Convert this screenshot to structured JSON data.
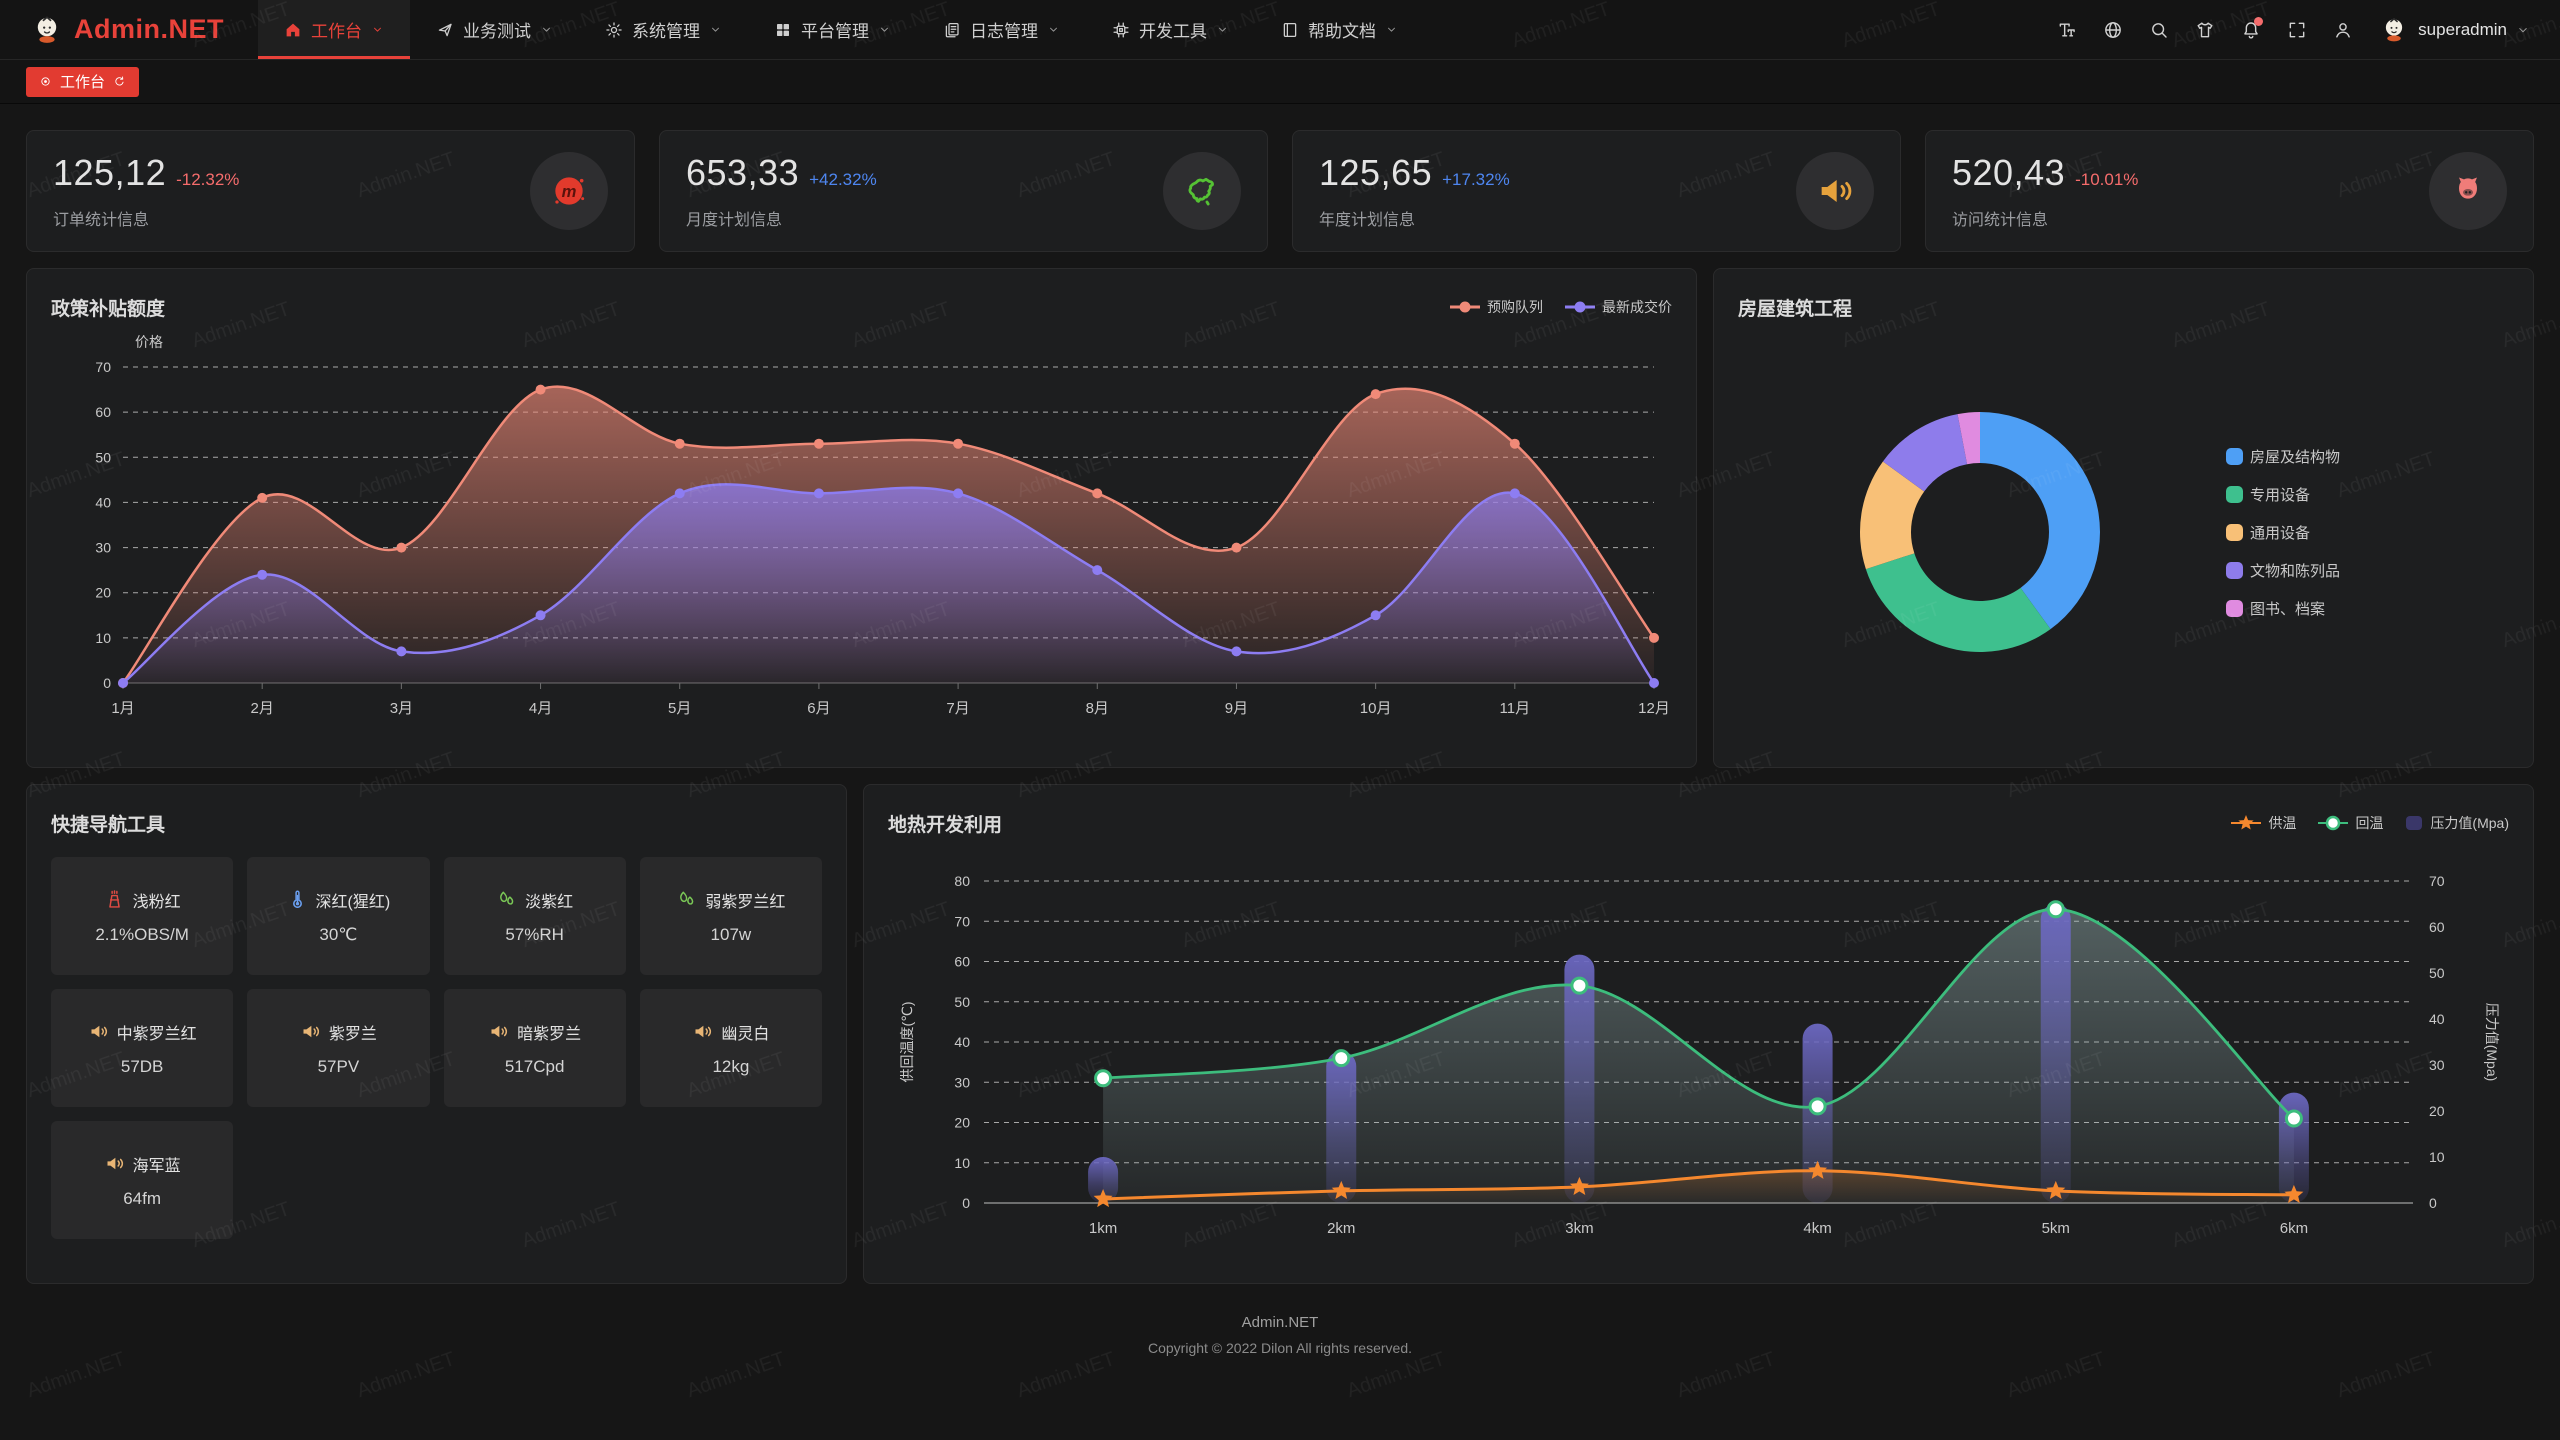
{
  "app": {
    "name": "Admin.NET",
    "watermark": "Admin.NET"
  },
  "colors": {
    "accent": "#e23b31",
    "up": "#4e86f0",
    "down": "#f56c6c",
    "badge": "#f56c6c"
  },
  "navbar": {
    "menus": [
      {
        "key": "workbench",
        "label": "工作台",
        "icon": "home-icon",
        "active": true
      },
      {
        "key": "business-test",
        "label": "业务测试",
        "icon": "send-icon",
        "active": false
      },
      {
        "key": "system-mgmt",
        "label": "系统管理",
        "icon": "gear-icon",
        "active": false
      },
      {
        "key": "platform-mgmt",
        "label": "平台管理",
        "icon": "grid-icon",
        "active": false
      },
      {
        "key": "log-mgmt",
        "label": "日志管理",
        "icon": "log-icon",
        "active": false
      },
      {
        "key": "dev-tools",
        "label": "开发工具",
        "icon": "cpu-icon",
        "active": false
      },
      {
        "key": "help-docs",
        "label": "帮助文档",
        "icon": "book-icon",
        "active": false
      }
    ],
    "actions": [
      {
        "name": "text-size-icon"
      },
      {
        "name": "language-icon"
      },
      {
        "name": "search-icon"
      },
      {
        "name": "theme-icon"
      },
      {
        "name": "notification-bell-icon",
        "badge": true
      },
      {
        "name": "fullscreen-icon"
      },
      {
        "name": "user-icon"
      }
    ],
    "user": "superadmin"
  },
  "tabbar": {
    "tabs": [
      {
        "label": "工作台",
        "active": true
      }
    ]
  },
  "stat_cards": [
    {
      "value": "125,12",
      "change": "-12.32%",
      "trend": "down",
      "label": "订单统计信息",
      "icon": "meetup-icon",
      "icon_color": "#e23a2c"
    },
    {
      "value": "653,33",
      "change": "+42.32%",
      "trend": "up",
      "label": "月度计划信息",
      "icon": "china-map-icon",
      "icon_color": "#55c234"
    },
    {
      "value": "125,65",
      "change": "+17.32%",
      "trend": "up",
      "label": "年度计划信息",
      "icon": "speaker-icon",
      "icon_color": "#e6a23c"
    },
    {
      "value": "520,43",
      "change": "-10.01%",
      "trend": "down",
      "label": "访问统计信息",
      "icon": "octocat-icon",
      "icon_color": "#f07c79"
    }
  ],
  "chart_data": [
    {
      "type": "area",
      "title": "政策补贴额度",
      "ylabel": "价格",
      "categories": [
        "1月",
        "2月",
        "3月",
        "4月",
        "5月",
        "6月",
        "7月",
        "8月",
        "9月",
        "10月",
        "11月",
        "12月"
      ],
      "ylim": [
        0,
        70
      ],
      "grid": true,
      "legend_position": "top-right",
      "series": [
        {
          "name": "预购队列",
          "color": "#f08a78",
          "values": [
            0,
            41,
            30,
            65,
            53,
            53,
            53,
            42,
            30,
            64,
            53,
            10
          ]
        },
        {
          "name": "最新成交价",
          "color": "#8d7df2",
          "values": [
            0,
            24,
            7,
            15,
            42,
            42,
            42,
            25,
            7,
            15,
            42,
            0
          ]
        }
      ]
    },
    {
      "type": "pie",
      "title": "房屋建筑工程",
      "legend_position": "right",
      "slices": [
        {
          "name": "房屋及结构物",
          "value": 40,
          "color": "#4e9ff5"
        },
        {
          "name": "专用设备",
          "value": 30,
          "color": "#3ec08e"
        },
        {
          "name": "通用设备",
          "value": 15,
          "color": "#f8c077"
        },
        {
          "name": "文物和陈列品",
          "value": 12,
          "color": "#8e7ceb"
        },
        {
          "name": "图书、档案",
          "value": 3,
          "color": "#e08be0"
        }
      ]
    },
    {
      "type": "line+bar",
      "title": "地热开发利用",
      "categories": [
        "1km",
        "2km",
        "3km",
        "4km",
        "5km",
        "6km"
      ],
      "ylabel_left": "供回温度(℃)",
      "ylabel_right": "压力值(Mpa)",
      "ylim_left": [
        0,
        80
      ],
      "ylim_right": [
        0,
        70
      ],
      "grid": true,
      "legend_position": "top-right",
      "series": [
        {
          "name": "供温",
          "type": "line",
          "axis": "left",
          "marker": "star",
          "color": "#f5882e",
          "values": [
            1,
            3,
            4,
            8,
            3,
            2
          ]
        },
        {
          "name": "回温",
          "type": "line",
          "axis": "left",
          "marker": "circle",
          "color": "#3dbd7d",
          "values": [
            31,
            36,
            54,
            24,
            73,
            21
          ]
        },
        {
          "name": "压力值(Mpa)",
          "type": "bar",
          "axis": "right",
          "marker": "square",
          "color": "#6c68c2",
          "values": [
            10,
            33,
            54,
            39,
            65,
            24
          ]
        }
      ]
    }
  ],
  "quick_nav": {
    "title": "快捷导航工具",
    "items": [
      {
        "label": "浅粉红",
        "value": "2.1%OBS/M",
        "icon": "chimney-icon",
        "icon_color": "#e04b43"
      },
      {
        "label": "深红(猩红)",
        "value": "30℃",
        "icon": "thermometer-icon",
        "icon_color": "#6a9ff0"
      },
      {
        "label": "淡紫红",
        "value": "57%RH",
        "icon": "leaf-icon",
        "icon_color": "#7ac756"
      },
      {
        "label": "弱紫罗兰红",
        "value": "107w",
        "icon": "leaf-icon",
        "icon_color": "#7ac756"
      },
      {
        "label": "中紫罗兰红",
        "value": "57DB",
        "icon": "speaker-icon",
        "icon_color": "#e8b575"
      },
      {
        "label": "紫罗兰",
        "value": "57PV",
        "icon": "speaker-icon",
        "icon_color": "#e8b575"
      },
      {
        "label": "暗紫罗兰",
        "value": "517Cpd",
        "icon": "speaker-icon",
        "icon_color": "#e8b575"
      },
      {
        "label": "幽灵白",
        "value": "12kg",
        "icon": "speaker-icon",
        "icon_color": "#e8b575"
      },
      {
        "label": "海军蓝",
        "value": "64fm",
        "icon": "speaker-icon",
        "icon_color": "#e8b575"
      }
    ]
  },
  "footer": {
    "line1": "Admin.NET",
    "line2": "Copyright © 2022 Dilon All rights reserved."
  }
}
